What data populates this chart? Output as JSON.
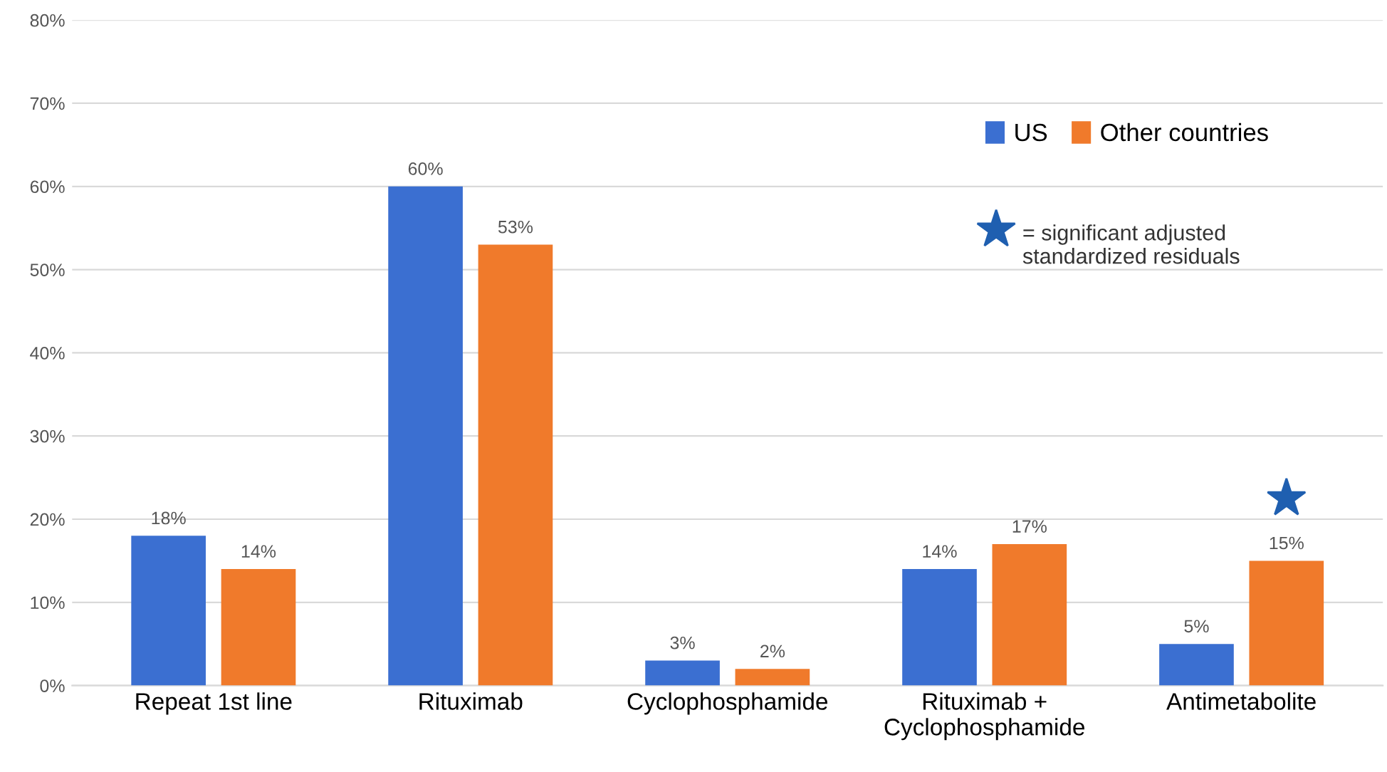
{
  "chart_data": {
    "type": "bar",
    "categories": [
      "Repeat 1st line",
      "Rituximab",
      "Cyclophosphamide",
      "Rituximab +\nCyclophosphamide",
      "Antimetabolite"
    ],
    "series": [
      {
        "name": "US",
        "color": "#3b6fd1",
        "values": [
          18,
          60,
          3,
          14,
          5
        ],
        "value_labels": [
          "18%",
          "60%",
          "3%",
          "14%",
          "5%"
        ]
      },
      {
        "name": "Other countries",
        "color": "#f07a2b",
        "values": [
          14,
          53,
          2,
          17,
          15
        ],
        "value_labels": [
          "14%",
          "53%",
          "2%",
          "17%",
          "15%"
        ]
      }
    ],
    "ylim": [
      0,
      80
    ],
    "yticks": [
      {
        "value": 0,
        "label": "0%"
      },
      {
        "value": 10,
        "label": "10%"
      },
      {
        "value": 20,
        "label": "20%"
      },
      {
        "value": 30,
        "label": "30%"
      },
      {
        "value": 40,
        "label": "40%"
      },
      {
        "value": 50,
        "label": "50%"
      },
      {
        "value": 60,
        "label": "60%"
      },
      {
        "value": 70,
        "label": "70%"
      },
      {
        "value": 80,
        "label": "80%"
      }
    ],
    "grid": "y",
    "legend": "top right",
    "annotations": [
      "= significant adjusted\nstandardized residuals"
    ]
  }
}
